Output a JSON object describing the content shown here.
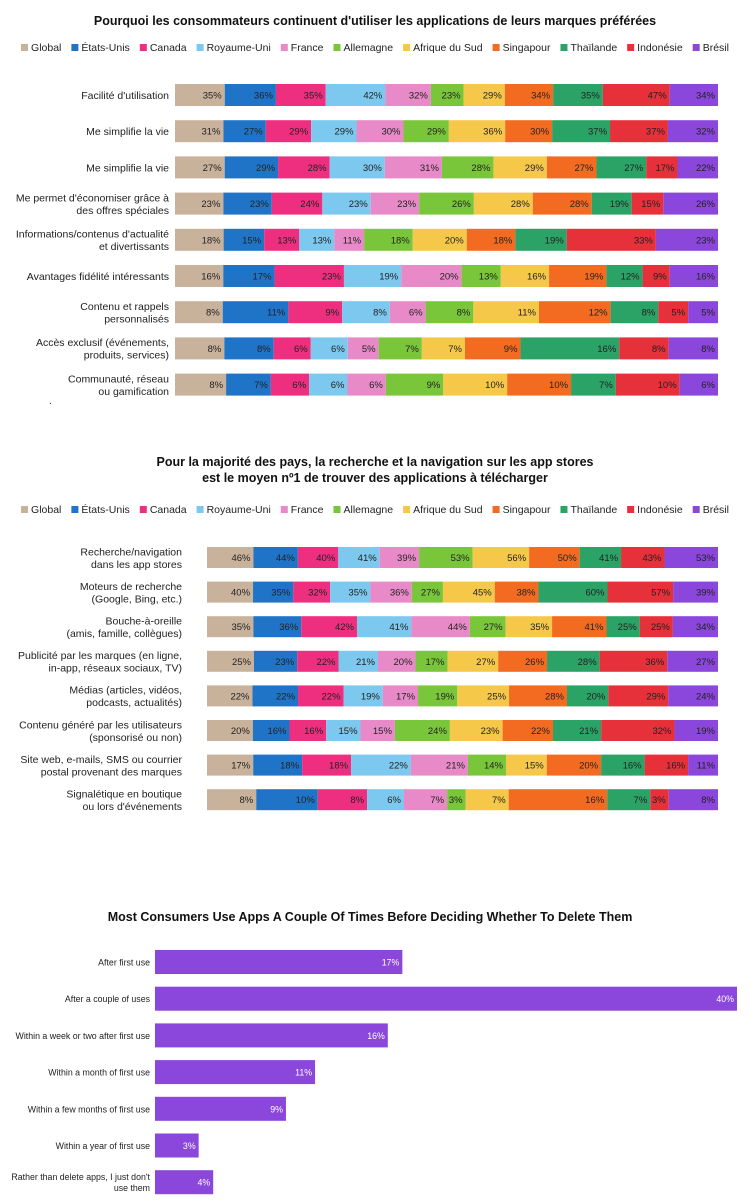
{
  "colors": {
    "series": [
      "#c9b29b",
      "#1f74c7",
      "#ee2f80",
      "#7cc8ee",
      "#e88ac8",
      "#7ac63a",
      "#f6c84a",
      "#f26b21",
      "#2ba266",
      "#e6303a",
      "#8b46db"
    ],
    "single_bar": "#8b46db"
  },
  "chart_data": [
    {
      "type": "bar",
      "stacked": true,
      "orientation": "horizontal",
      "title": "Pourquoi les consommateurs continuent d'utiliser les applications de leurs marques préférées",
      "legend_position": "top",
      "series_names": [
        "Global",
        "États-Unis",
        "Canada",
        "Royaume-Uni",
        "France",
        "Allemagne",
        "Afrique du Sud",
        "Singapour",
        "Thaïlande",
        "Indonésie",
        "Brésil"
      ],
      "footnote": ".",
      "rows": [
        {
          "label": [
            "Facilité d'utilisation"
          ],
          "values": [
            35,
            36,
            35,
            42,
            32,
            23,
            29,
            34,
            35,
            47,
            34
          ]
        },
        {
          "label": [
            "Me simplifie la vie"
          ],
          "values": [
            31,
            27,
            29,
            29,
            30,
            29,
            36,
            30,
            37,
            37,
            32
          ]
        },
        {
          "label": [
            "Me simplifie la vie"
          ],
          "values": [
            27,
            29,
            28,
            30,
            31,
            28,
            29,
            27,
            27,
            17,
            22
          ]
        },
        {
          "label": [
            "Me permet d'économiser grâce à",
            "des offres spéciales"
          ],
          "values": [
            23,
            23,
            24,
            23,
            23,
            26,
            28,
            28,
            19,
            15,
            26
          ]
        },
        {
          "label": [
            "Informations/contenus d'actualité",
            "et divertissants"
          ],
          "values": [
            18,
            15,
            13,
            13,
            11,
            18,
            20,
            18,
            19,
            33,
            23
          ]
        },
        {
          "label": [
            "Avantages fidélité intéressants"
          ],
          "values": [
            16,
            17,
            23,
            19,
            20,
            13,
            16,
            19,
            12,
            9,
            16
          ]
        },
        {
          "label": [
            "Contenu et rappels",
            "personnalisés"
          ],
          "values": [
            8,
            11,
            9,
            8,
            6,
            8,
            11,
            12,
            8,
            5,
            5
          ]
        },
        {
          "label": [
            "Accès exclusif (événements,",
            "produits, services)"
          ],
          "values": [
            8,
            8,
            6,
            6,
            5,
            7,
            7,
            9,
            16,
            8,
            8
          ]
        },
        {
          "label": [
            "Communauté, réseau",
            "ou gamification"
          ],
          "values": [
            8,
            7,
            6,
            6,
            6,
            9,
            10,
            10,
            7,
            10,
            6
          ]
        }
      ]
    },
    {
      "type": "bar",
      "stacked": true,
      "orientation": "horizontal",
      "title": [
        "Pour la majorité des pays, la recherche et la navigation sur les app stores",
        "est le moyen nº1 de trouver des applications à télécharger"
      ],
      "legend_position": "top",
      "series_names": [
        "Global",
        "États-Unis",
        "Canada",
        "Royaume-Uni",
        "France",
        "Allemagne",
        "Afrique du Sud",
        "Singapour",
        "Thaïlande",
        "Indonésie",
        "Brésil"
      ],
      "rows": [
        {
          "label": [
            "Recherche/navigation",
            "dans les app stores"
          ],
          "values": [
            46,
            44,
            40,
            41,
            39,
            53,
            56,
            50,
            41,
            43,
            53
          ]
        },
        {
          "label": [
            "Moteurs de recherche",
            "(Google, Bing, etc.)"
          ],
          "values": [
            40,
            35,
            32,
            35,
            36,
            27,
            45,
            38,
            60,
            57,
            39
          ]
        },
        {
          "label": [
            "Bouche-à-oreille",
            "(amis, famille, collègues)"
          ],
          "values": [
            35,
            36,
            42,
            41,
            44,
            27,
            35,
            41,
            25,
            25,
            34
          ]
        },
        {
          "label": [
            "Publicité par les marques (en ligne,",
            "in-app, réseaux sociaux, TV)"
          ],
          "values": [
            25,
            23,
            22,
            21,
            20,
            17,
            27,
            26,
            28,
            36,
            27
          ]
        },
        {
          "label": [
            "Médias (articles, vidéos,",
            "podcasts, actualités)"
          ],
          "values": [
            22,
            22,
            22,
            19,
            17,
            19,
            25,
            28,
            20,
            29,
            24
          ]
        },
        {
          "label": [
            "Contenu généré par les utilisateurs",
            "(sponsorisé ou non)"
          ],
          "values": [
            20,
            16,
            16,
            15,
            15,
            24,
            23,
            22,
            21,
            32,
            19
          ]
        },
        {
          "label": [
            "Site web, e-mails, SMS ou courrier",
            "postal provenant des marques"
          ],
          "values": [
            17,
            18,
            18,
            22,
            21,
            14,
            15,
            20,
            16,
            16,
            11
          ]
        },
        {
          "label": [
            "Signalétique en boutique",
            "ou lors d'événements"
          ],
          "values": [
            8,
            10,
            8,
            6,
            7,
            3,
            7,
            16,
            7,
            3,
            8
          ]
        }
      ]
    },
    {
      "type": "bar",
      "orientation": "horizontal",
      "title": "Most Consumers Use Apps A Couple Of Times Before Deciding Whether To Delete Them",
      "xlim": [
        0,
        40
      ],
      "rows": [
        {
          "label": [
            "After first use"
          ],
          "value": 17
        },
        {
          "label": [
            "After a couple of uses"
          ],
          "value": 40
        },
        {
          "label": [
            "Within a week or two after first use"
          ],
          "value": 16
        },
        {
          "label": [
            "Within a month of first use"
          ],
          "value": 11
        },
        {
          "label": [
            "Within a few months of first use"
          ],
          "value": 9
        },
        {
          "label": [
            "Within a year of first use"
          ],
          "value": 3
        },
        {
          "label": [
            "Rather than delete apps, I just don't",
            "use them"
          ],
          "value": 4
        }
      ]
    }
  ]
}
